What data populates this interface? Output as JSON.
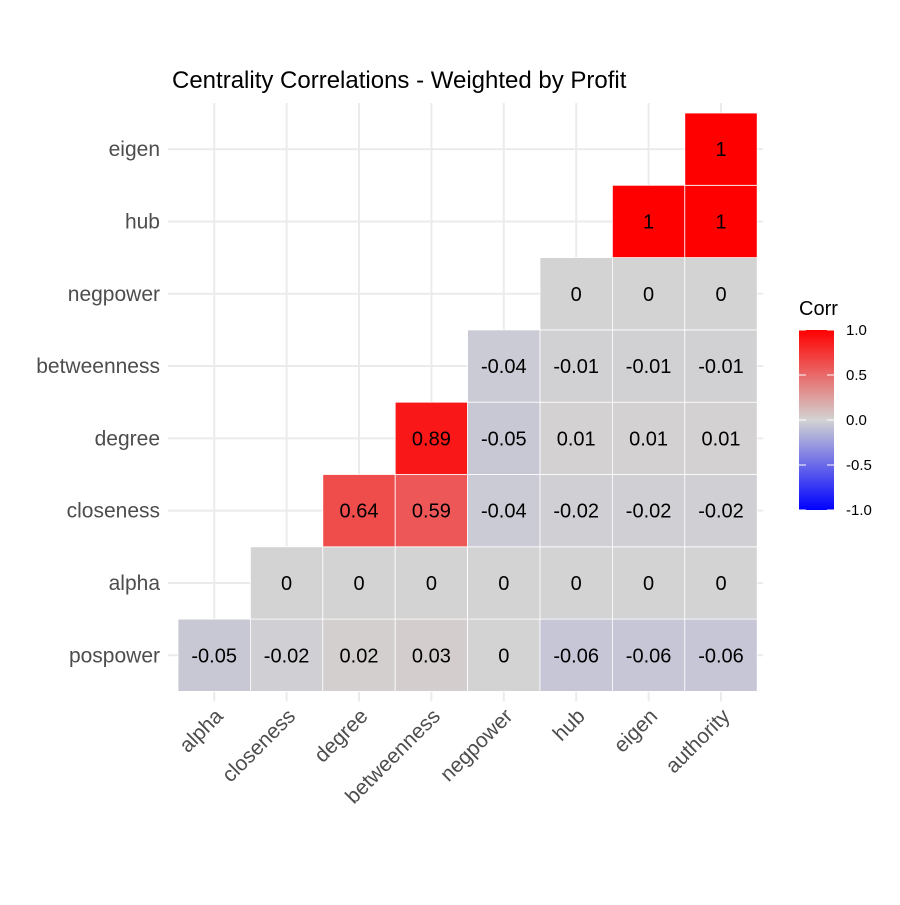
{
  "chart_data": {
    "type": "heatmap",
    "title": "Centrality Correlations - Weighted by Profit",
    "x_labels": [
      "alpha",
      "closeness",
      "degree",
      "betweenness",
      "negpower",
      "hub",
      "eigen",
      "authority"
    ],
    "y_labels": [
      "pospower",
      "alpha",
      "closeness",
      "degree",
      "betweenness",
      "negpower",
      "hub",
      "eigen"
    ],
    "cells": [
      {
        "x": "alpha",
        "y": "pospower",
        "value": -0.05,
        "label": "-0.05"
      },
      {
        "x": "closeness",
        "y": "pospower",
        "value": -0.02,
        "label": "-0.02"
      },
      {
        "x": "degree",
        "y": "pospower",
        "value": 0.02,
        "label": "0.02"
      },
      {
        "x": "betweenness",
        "y": "pospower",
        "value": 0.03,
        "label": "0.03"
      },
      {
        "x": "negpower",
        "y": "pospower",
        "value": 0,
        "label": "0"
      },
      {
        "x": "hub",
        "y": "pospower",
        "value": -0.06,
        "label": "-0.06"
      },
      {
        "x": "eigen",
        "y": "pospower",
        "value": -0.06,
        "label": "-0.06"
      },
      {
        "x": "authority",
        "y": "pospower",
        "value": -0.06,
        "label": "-0.06"
      },
      {
        "x": "closeness",
        "y": "alpha",
        "value": 0,
        "label": "0"
      },
      {
        "x": "degree",
        "y": "alpha",
        "value": 0,
        "label": "0"
      },
      {
        "x": "betweenness",
        "y": "alpha",
        "value": 0,
        "label": "0"
      },
      {
        "x": "negpower",
        "y": "alpha",
        "value": 0,
        "label": "0"
      },
      {
        "x": "hub",
        "y": "alpha",
        "value": 0,
        "label": "0"
      },
      {
        "x": "eigen",
        "y": "alpha",
        "value": 0,
        "label": "0"
      },
      {
        "x": "authority",
        "y": "alpha",
        "value": 0,
        "label": "0"
      },
      {
        "x": "degree",
        "y": "closeness",
        "value": 0.64,
        "label": "0.64"
      },
      {
        "x": "betweenness",
        "y": "closeness",
        "value": 0.59,
        "label": "0.59"
      },
      {
        "x": "negpower",
        "y": "closeness",
        "value": -0.04,
        "label": "-0.04"
      },
      {
        "x": "hub",
        "y": "closeness",
        "value": -0.02,
        "label": "-0.02"
      },
      {
        "x": "eigen",
        "y": "closeness",
        "value": -0.02,
        "label": "-0.02"
      },
      {
        "x": "authority",
        "y": "closeness",
        "value": -0.02,
        "label": "-0.02"
      },
      {
        "x": "betweenness",
        "y": "degree",
        "value": 0.89,
        "label": "0.89"
      },
      {
        "x": "negpower",
        "y": "degree",
        "value": -0.05,
        "label": "-0.05"
      },
      {
        "x": "hub",
        "y": "degree",
        "value": 0.01,
        "label": "0.01"
      },
      {
        "x": "eigen",
        "y": "degree",
        "value": 0.01,
        "label": "0.01"
      },
      {
        "x": "authority",
        "y": "degree",
        "value": 0.01,
        "label": "0.01"
      },
      {
        "x": "negpower",
        "y": "betweenness",
        "value": -0.04,
        "label": "-0.04"
      },
      {
        "x": "hub",
        "y": "betweenness",
        "value": -0.01,
        "label": "-0.01"
      },
      {
        "x": "eigen",
        "y": "betweenness",
        "value": -0.01,
        "label": "-0.01"
      },
      {
        "x": "authority",
        "y": "betweenness",
        "value": -0.01,
        "label": "-0.01"
      },
      {
        "x": "hub",
        "y": "negpower",
        "value": 0,
        "label": "0"
      },
      {
        "x": "eigen",
        "y": "negpower",
        "value": 0,
        "label": "0"
      },
      {
        "x": "authority",
        "y": "negpower",
        "value": 0,
        "label": "0"
      },
      {
        "x": "eigen",
        "y": "hub",
        "value": 1,
        "label": "1"
      },
      {
        "x": "authority",
        "y": "hub",
        "value": 1,
        "label": "1"
      },
      {
        "x": "authority",
        "y": "eigen",
        "value": 1,
        "label": "1"
      }
    ],
    "legend": {
      "title": "Corr",
      "ticks": [
        1.0,
        0.5,
        0.0,
        -0.5,
        -1.0
      ],
      "tick_labels": [
        "1.0",
        "0.5",
        "0.0",
        "-0.5",
        "-1.0"
      ],
      "range": [
        -1,
        1
      ],
      "placement": "right"
    },
    "colors": {
      "low": "#0000ff",
      "mid": "#d3d3d3",
      "high": "#ff0000",
      "grid": "#ebebeb",
      "tile_border": "#ffffff"
    },
    "grid": true
  }
}
